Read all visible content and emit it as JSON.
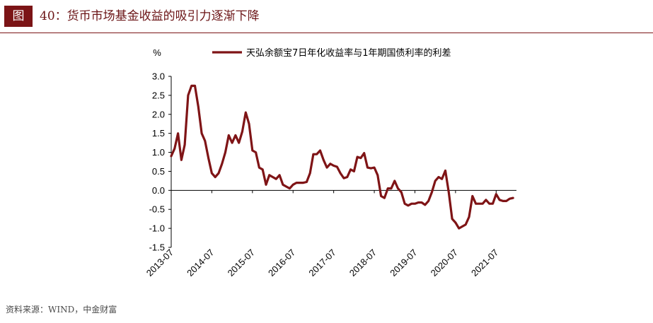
{
  "figure": {
    "number_label": "图",
    "title": "40：货币市场基金收益的吸引力逐渐下降",
    "source": "资料来源：WIND，中金财富"
  },
  "colors": {
    "accent": "#7b1416",
    "series": "#7f1416"
  },
  "chart_data": {
    "type": "line",
    "title": "",
    "xlabel": "",
    "ylabel": "%",
    "ylim": [
      -1.5,
      3.0
    ],
    "yticks": [
      "3.0",
      "2.5",
      "2.0",
      "1.5",
      "1.0",
      "0.5",
      "0.0",
      "-0.5",
      "-1.0",
      "-1.5"
    ],
    "xtick_labels": [
      "2013-07",
      "2014-07",
      "2015-07",
      "2016-07",
      "2017-07",
      "2018-07",
      "2019-07",
      "2020-07",
      "2021-07"
    ],
    "xlim": [
      "2013-07",
      "2022-01"
    ],
    "grid": false,
    "legend_position": "top",
    "series": [
      {
        "name": "天弘余额宝7日年化收益率与1年期国债利率的利差",
        "x": [
          "2013-07",
          "2013-08",
          "2013-09",
          "2013-10",
          "2013-11",
          "2013-12",
          "2014-01",
          "2014-02",
          "2014-03",
          "2014-04",
          "2014-05",
          "2014-06",
          "2014-07",
          "2014-08",
          "2014-09",
          "2014-10",
          "2014-11",
          "2014-12",
          "2015-01",
          "2015-02",
          "2015-03",
          "2015-04",
          "2015-05",
          "2015-06",
          "2015-07",
          "2015-08",
          "2015-09",
          "2015-10",
          "2015-11",
          "2015-12",
          "2016-01",
          "2016-02",
          "2016-03",
          "2016-04",
          "2016-05",
          "2016-06",
          "2016-07",
          "2016-08",
          "2016-09",
          "2016-10",
          "2016-11",
          "2016-12",
          "2017-01",
          "2017-02",
          "2017-03",
          "2017-04",
          "2017-05",
          "2017-06",
          "2017-07",
          "2017-08",
          "2017-09",
          "2017-10",
          "2017-11",
          "2017-12",
          "2018-01",
          "2018-02",
          "2018-03",
          "2018-04",
          "2018-05",
          "2018-06",
          "2018-07",
          "2018-08",
          "2018-09",
          "2018-10",
          "2018-11",
          "2018-12",
          "2019-01",
          "2019-02",
          "2019-03",
          "2019-04",
          "2019-05",
          "2019-06",
          "2019-07",
          "2019-08",
          "2019-09",
          "2019-10",
          "2019-11",
          "2019-12",
          "2020-01",
          "2020-02",
          "2020-03",
          "2020-04",
          "2020-05",
          "2020-06",
          "2020-07",
          "2020-08",
          "2020-09",
          "2020-10",
          "2020-11",
          "2020-12",
          "2021-01",
          "2021-02",
          "2021-03",
          "2021-04",
          "2021-05",
          "2021-06",
          "2021-07",
          "2021-08",
          "2021-09",
          "2021-10",
          "2021-11",
          "2021-12"
        ],
        "values": [
          0.9,
          1.1,
          1.5,
          0.8,
          1.2,
          2.5,
          2.75,
          2.75,
          2.2,
          1.5,
          1.3,
          0.85,
          0.45,
          0.35,
          0.45,
          0.7,
          1.0,
          1.45,
          1.25,
          1.45,
          1.25,
          1.55,
          2.05,
          1.75,
          1.05,
          1.0,
          0.6,
          0.55,
          0.15,
          0.4,
          0.35,
          0.3,
          0.4,
          0.15,
          0.1,
          0.05,
          0.15,
          0.2,
          0.2,
          0.2,
          0.22,
          0.45,
          0.95,
          0.95,
          1.05,
          0.8,
          0.6,
          0.7,
          0.65,
          0.62,
          0.45,
          0.32,
          0.35,
          0.55,
          0.5,
          0.88,
          0.85,
          0.98,
          0.6,
          0.58,
          0.6,
          0.4,
          -0.15,
          -0.2,
          0.05,
          0.05,
          0.25,
          0.05,
          -0.05,
          -0.35,
          -0.4,
          -0.35,
          -0.35,
          -0.32,
          -0.32,
          -0.38,
          -0.28,
          -0.05,
          0.25,
          0.35,
          0.3,
          0.52,
          -0.05,
          -0.75,
          -0.85,
          -1.0,
          -0.95,
          -0.9,
          -0.7,
          -0.15,
          -0.35,
          -0.35,
          -0.35,
          -0.25,
          -0.35,
          -0.35,
          -0.1,
          -0.25,
          -0.28,
          -0.28,
          -0.22,
          -0.2
        ]
      }
    ]
  }
}
